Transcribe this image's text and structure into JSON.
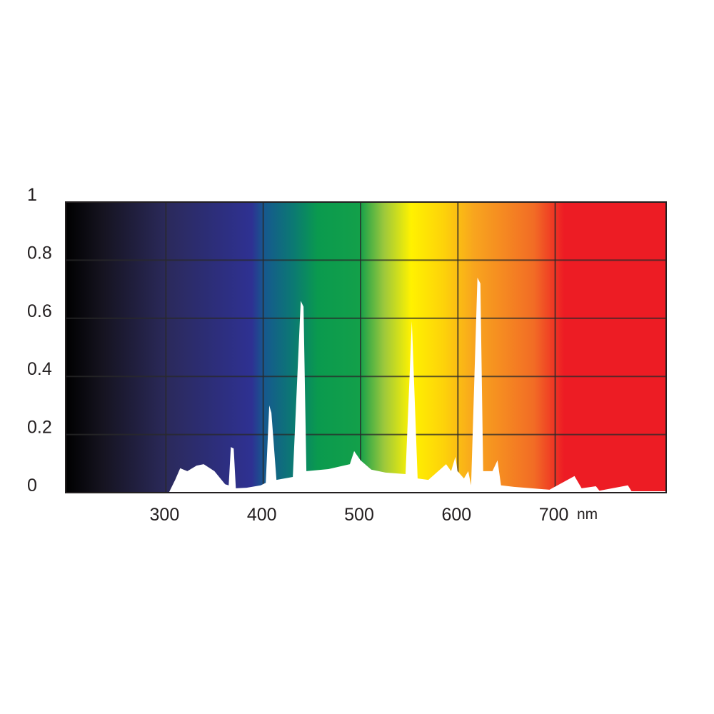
{
  "chart_data": {
    "type": "area",
    "title": "",
    "xlabel": "",
    "ylabel": "",
    "x_unit": "nm",
    "xlim": [
      197,
      814
    ],
    "ylim": [
      0,
      1
    ],
    "grid": true,
    "x_ticks": [
      300,
      400,
      500,
      600,
      700
    ],
    "x_tick_labels": [
      "300",
      "400",
      "500",
      "600",
      "700"
    ],
    "y_ticks": [
      0,
      0.2,
      0.4,
      0.6,
      0.8,
      1
    ],
    "y_tick_labels": [
      "0",
      "0.2",
      "0.4",
      "0.6",
      "0.8",
      "1"
    ],
    "background": "visible spectrum color gradient (black → violet/blue → green → yellow → orange → red)",
    "fill_color": "#ffffff",
    "series": [
      {
        "x": [
          303,
          309.5,
          314.7,
          322,
          331.5,
          338.8,
          349.8,
          360.8,
          364.5,
          366.7,
          369.6,
          371.8,
          382.8,
          397.4,
          402.6,
          406.2,
          408.4,
          413.6,
          430.4,
          438.5,
          441.4,
          444.3,
          467,
          489,
          493.4,
          500,
          511,
          525.6,
          546.2,
          552.7,
          558.6,
          569.6,
          587.9,
          593,
          597.4,
          599.6,
          606.2,
          610.6,
          613.6,
          620.1,
          623.1,
          626,
          635.5,
          640.7,
          644.3,
          657.5,
          694.1,
          719.8,
          727.1,
          741.8,
          745.4,
          774.7,
          778.4,
          813.6
        ],
        "y": [
          0,
          0.044,
          0.084,
          0.074,
          0.093,
          0.098,
          0.074,
          0.029,
          0.025,
          0.157,
          0.152,
          0.015,
          0.017,
          0.025,
          0.034,
          0.3,
          0.275,
          0.044,
          0.054,
          0.66,
          0.64,
          0.074,
          0.081,
          0.098,
          0.143,
          0.111,
          0.079,
          0.069,
          0.064,
          0.59,
          0.049,
          0.044,
          0.098,
          0.074,
          0.123,
          0.074,
          0.049,
          0.074,
          0.025,
          0.74,
          0.72,
          0.074,
          0.074,
          0.111,
          0.025,
          0.02,
          0.01,
          0.057,
          0.015,
          0.022,
          0.007,
          0.025,
          0.005,
          0.005
        ]
      }
    ]
  }
}
